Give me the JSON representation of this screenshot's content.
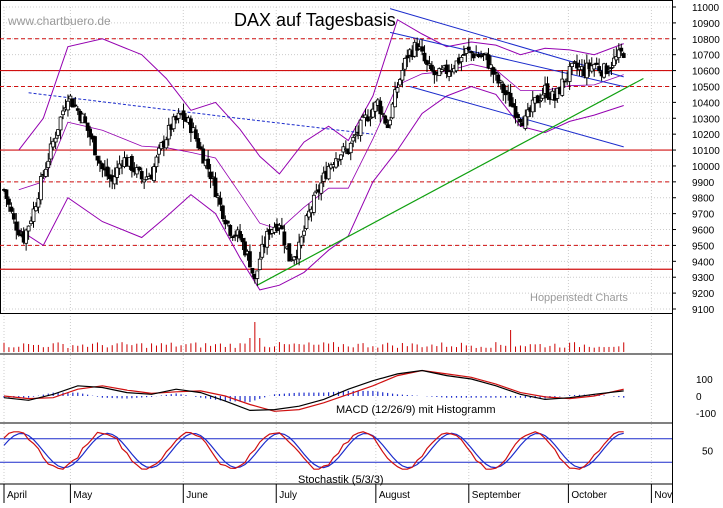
{
  "watermark": "www.chartbuero.de",
  "title": "DAX auf Tagesbasis",
  "credit": "Hoppenstedt Charts",
  "colors": {
    "candle": "#000000",
    "bollinger": "#9400b0",
    "hline_solid": "#d01010",
    "hline_dashed": "#d01010",
    "channel": "#1c2ccc",
    "uptrend": "#10a010",
    "volume": "#cc0000",
    "macd": "#000000",
    "signal": "#d01010",
    "histogram": "#1c2ccc",
    "stoch_k": "#d01010",
    "stoch_d": "#1c2ccc",
    "stoch_bounds": "#1c2ccc",
    "grid": "#cccccc"
  },
  "chart_data": [
    {
      "type": "candlestick",
      "title": "DAX auf Tagesbasis",
      "ylim": [
        9100,
        11000
      ],
      "y_ticks": [
        9100,
        9200,
        9300,
        9400,
        9500,
        9600,
        9700,
        9800,
        9900,
        10000,
        10100,
        10200,
        10300,
        10400,
        10500,
        10600,
        10700,
        10800,
        10900,
        11000
      ],
      "x_labels": [
        "April",
        "May",
        "June",
        "July",
        "August",
        "September",
        "October",
        "Nov"
      ],
      "grid": true,
      "close_path": [
        [
          0,
          9850
        ],
        [
          4,
          9650
        ],
        [
          8,
          9550
        ],
        [
          12,
          9720
        ],
        [
          16,
          9950
        ],
        [
          20,
          10150
        ],
        [
          24,
          10350
        ],
        [
          26,
          10450
        ],
        [
          28,
          10400
        ],
        [
          32,
          10300
        ],
        [
          36,
          10150
        ],
        [
          40,
          9980
        ],
        [
          44,
          9900
        ],
        [
          48,
          10050
        ],
        [
          52,
          10000
        ],
        [
          56,
          9920
        ],
        [
          60,
          9950
        ],
        [
          64,
          10120
        ],
        [
          68,
          10250
        ],
        [
          72,
          10320
        ],
        [
          76,
          10250
        ],
        [
          80,
          10100
        ],
        [
          84,
          9950
        ],
        [
          88,
          9750
        ],
        [
          92,
          9600
        ],
        [
          96,
          9550
        ],
        [
          100,
          9400
        ],
        [
          102,
          9270
        ],
        [
          104,
          9420
        ],
        [
          108,
          9600
        ],
        [
          112,
          9650
        ],
        [
          116,
          9420
        ],
        [
          120,
          9480
        ],
        [
          124,
          9700
        ],
        [
          128,
          9850
        ],
        [
          132,
          10000
        ],
        [
          136,
          10080
        ],
        [
          140,
          10100
        ],
        [
          144,
          10220
        ],
        [
          148,
          10320
        ],
        [
          152,
          10400
        ],
        [
          156,
          10250
        ],
        [
          160,
          10500
        ],
        [
          164,
          10700
        ],
        [
          168,
          10760
        ],
        [
          172,
          10620
        ],
        [
          176,
          10560
        ],
        [
          180,
          10600
        ],
        [
          184,
          10650
        ],
        [
          188,
          10720
        ],
        [
          192,
          10700
        ],
        [
          196,
          10680
        ],
        [
          200,
          10550
        ],
        [
          204,
          10450
        ],
        [
          208,
          10350
        ],
        [
          212,
          10280
        ],
        [
          216,
          10400
        ],
        [
          220,
          10480
        ],
        [
          224,
          10420
        ],
        [
          228,
          10550
        ],
        [
          232,
          10620
        ],
        [
          236,
          10600
        ],
        [
          240,
          10640
        ],
        [
          244,
          10600
        ],
        [
          248,
          10660
        ],
        [
          252,
          10720
        ]
      ],
      "horizontal_levels_solid": [
        10600,
        10100,
        9350
      ],
      "horizontal_levels_dashed": [
        10800,
        10500,
        9900,
        9500
      ],
      "trendlines": {
        "dashed_downtrend": [
          [
            10,
            10460
          ],
          [
            90,
            10310
          ],
          [
            150,
            10200
          ]
        ],
        "channel_upper": [
          [
            157,
            10990
          ],
          [
            252,
            10560
          ]
        ],
        "channel_mid": [
          [
            157,
            10840
          ],
          [
            252,
            10500
          ]
        ],
        "channel_lower": [
          [
            165,
            10500
          ],
          [
            252,
            10120
          ]
        ],
        "uptrend": [
          [
            103,
            9250
          ],
          [
            260,
            10550
          ]
        ]
      },
      "bollinger_upper": [
        [
          6,
          10100
        ],
        [
          16,
          10300
        ],
        [
          26,
          10750
        ],
        [
          40,
          10800
        ],
        [
          56,
          10700
        ],
        [
          66,
          10550
        ],
        [
          76,
          10350
        ],
        [
          86,
          10400
        ],
        [
          96,
          10230
        ],
        [
          104,
          10060
        ],
        [
          112,
          9950
        ],
        [
          122,
          10150
        ],
        [
          132,
          10250
        ],
        [
          140,
          10160
        ],
        [
          150,
          10440
        ],
        [
          160,
          10920
        ],
        [
          170,
          10830
        ],
        [
          180,
          10750
        ],
        [
          190,
          10780
        ],
        [
          200,
          10760
        ],
        [
          210,
          10700
        ],
        [
          220,
          10740
        ],
        [
          230,
          10730
        ],
        [
          240,
          10700
        ],
        [
          252,
          10770
        ]
      ],
      "bollinger_lower": [
        [
          6,
          9600
        ],
        [
          16,
          9500
        ],
        [
          26,
          9800
        ],
        [
          40,
          9650
        ],
        [
          56,
          9550
        ],
        [
          66,
          9680
        ],
        [
          76,
          9820
        ],
        [
          86,
          9700
        ],
        [
          96,
          9420
        ],
        [
          104,
          9220
        ],
        [
          112,
          9250
        ],
        [
          122,
          9330
        ],
        [
          132,
          9470
        ],
        [
          140,
          9560
        ],
        [
          150,
          9900
        ],
        [
          160,
          10100
        ],
        [
          170,
          10330
        ],
        [
          180,
          10440
        ],
        [
          190,
          10500
        ],
        [
          200,
          10450
        ],
        [
          210,
          10250
        ],
        [
          220,
          10210
        ],
        [
          230,
          10280
        ],
        [
          240,
          10320
        ],
        [
          252,
          10380
        ]
      ]
    },
    {
      "type": "bar",
      "name": "volume"
    },
    {
      "type": "line",
      "name": "MACD",
      "label": "MACD (12/26/9) mit Histogramm",
      "ylim": [
        -100,
        100
      ],
      "y_ticks": [
        100,
        0,
        -100
      ],
      "macd": [
        [
          0,
          -10
        ],
        [
          10,
          -25
        ],
        [
          20,
          10
        ],
        [
          30,
          60
        ],
        [
          40,
          50
        ],
        [
          50,
          20
        ],
        [
          60,
          10
        ],
        [
          70,
          40
        ],
        [
          80,
          20
        ],
        [
          90,
          -30
        ],
        [
          100,
          -85
        ],
        [
          110,
          -80
        ],
        [
          120,
          -60
        ],
        [
          130,
          -20
        ],
        [
          140,
          40
        ],
        [
          150,
          90
        ],
        [
          160,
          130
        ],
        [
          170,
          150
        ],
        [
          180,
          120
        ],
        [
          190,
          100
        ],
        [
          200,
          60
        ],
        [
          210,
          10
        ],
        [
          220,
          -20
        ],
        [
          230,
          -10
        ],
        [
          240,
          10
        ],
        [
          252,
          30
        ]
      ],
      "signal": [
        [
          0,
          0
        ],
        [
          10,
          -15
        ],
        [
          20,
          -10
        ],
        [
          30,
          40
        ],
        [
          40,
          60
        ],
        [
          50,
          35
        ],
        [
          60,
          15
        ],
        [
          70,
          25
        ],
        [
          80,
          30
        ],
        [
          90,
          0
        ],
        [
          100,
          -50
        ],
        [
          110,
          -90
        ],
        [
          120,
          -80
        ],
        [
          130,
          -40
        ],
        [
          140,
          10
        ],
        [
          150,
          60
        ],
        [
          160,
          120
        ],
        [
          170,
          150
        ],
        [
          180,
          130
        ],
        [
          190,
          110
        ],
        [
          200,
          70
        ],
        [
          210,
          20
        ],
        [
          220,
          -5
        ],
        [
          230,
          -15
        ],
        [
          240,
          0
        ],
        [
          252,
          40
        ]
      ],
      "histogram": [
        [
          0,
          -10
        ],
        [
          10,
          -10
        ],
        [
          20,
          20
        ],
        [
          30,
          20
        ],
        [
          40,
          -10
        ],
        [
          50,
          -15
        ],
        [
          60,
          -5
        ],
        [
          70,
          15
        ],
        [
          80,
          -10
        ],
        [
          90,
          -30
        ],
        [
          100,
          -35
        ],
        [
          110,
          10
        ],
        [
          120,
          20
        ],
        [
          130,
          20
        ],
        [
          140,
          30
        ],
        [
          150,
          30
        ],
        [
          160,
          10
        ],
        [
          170,
          0
        ],
        [
          180,
          -10
        ],
        [
          190,
          -10
        ],
        [
          200,
          -10
        ],
        [
          210,
          -10
        ],
        [
          220,
          -15
        ],
        [
          230,
          5
        ],
        [
          240,
          10
        ],
        [
          252,
          -10
        ]
      ]
    },
    {
      "type": "line",
      "name": "Stochastik",
      "label": "Stochastik (5/3/3)",
      "ylim": [
        0,
        100
      ],
      "y_ticks": [
        50
      ],
      "bounds": [
        80,
        20
      ]
    }
  ]
}
